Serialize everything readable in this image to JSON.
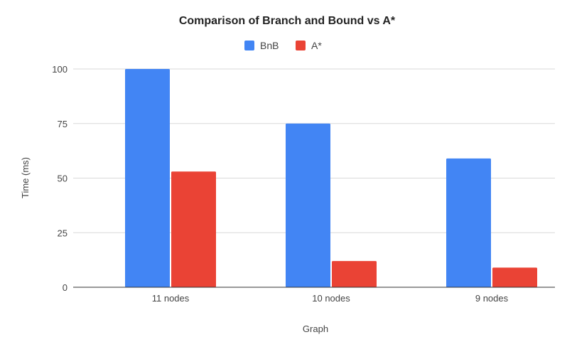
{
  "chart_data": {
    "type": "bar",
    "title": "Comparison of Branch and Bound vs A*",
    "xlabel": "Graph",
    "ylabel": "Time (ms)",
    "categories": [
      "11 nodes",
      "10 nodes",
      "9 nodes"
    ],
    "series": [
      {
        "name": "BnB",
        "color": "#4285F4",
        "values": [
          100,
          75,
          59
        ]
      },
      {
        "name": "A*",
        "color": "#EA4335",
        "values": [
          53,
          12,
          9
        ]
      }
    ],
    "ylim": [
      0,
      100
    ],
    "yticks": [
      0,
      25,
      50,
      75,
      100
    ],
    "grid": true,
    "legend_position": "top"
  }
}
